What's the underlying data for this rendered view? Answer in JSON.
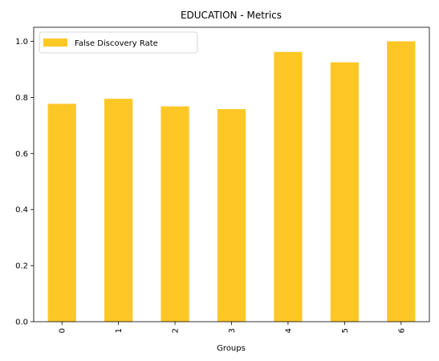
{
  "chart_data": {
    "type": "bar",
    "title": "EDUCATION - Metrics",
    "xlabel": "Groups",
    "ylabel": "",
    "categories": [
      "0",
      "1",
      "2",
      "3",
      "4",
      "5",
      "6"
    ],
    "series": [
      {
        "name": "False Discovery Rate",
        "values": [
          0.777,
          0.795,
          0.768,
          0.758,
          0.962,
          0.925,
          1.0
        ],
        "color": "#FDC726"
      }
    ],
    "ylim": [
      0,
      1.05
    ],
    "yticks": [
      0.0,
      0.2,
      0.4,
      0.6,
      0.8,
      1.0
    ],
    "ytick_labels": [
      "0.0",
      "0.2",
      "0.4",
      "0.6",
      "0.8",
      "1.0"
    ],
    "grid": false,
    "legend_position": "upper-left"
  }
}
